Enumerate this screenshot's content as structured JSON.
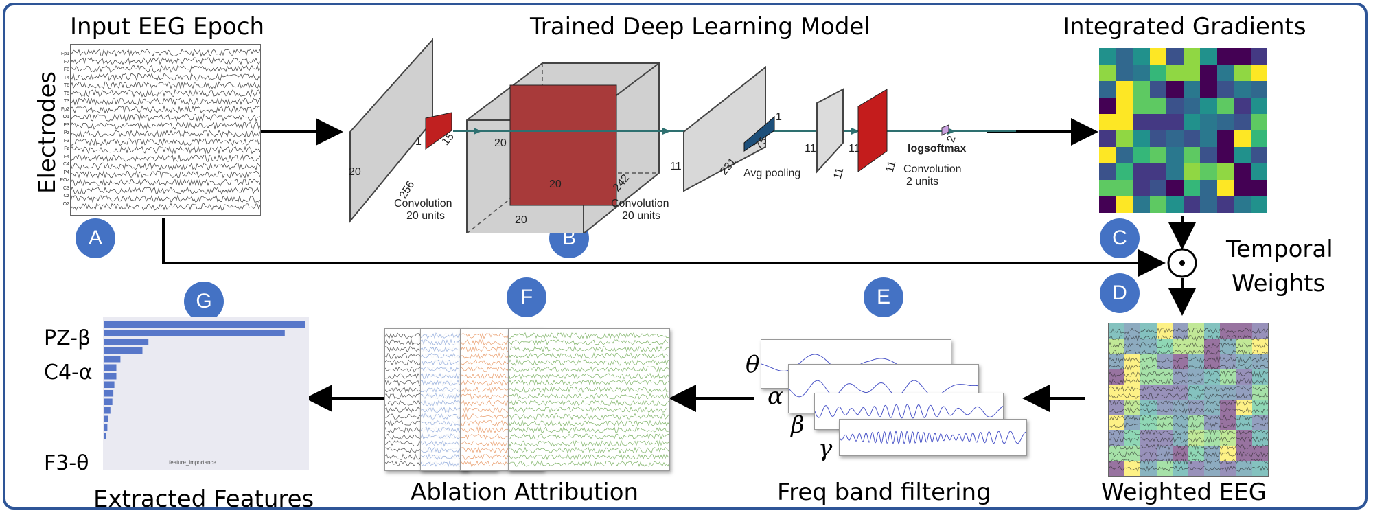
{
  "titles": {
    "input": "Input EEG Epoch",
    "model": "Trained Deep Learning Model",
    "ig": "Integrated Gradients",
    "temporal_line1": "Temporal",
    "temporal_line2": "Weights",
    "weighted": "Weighted EEG",
    "freq": "Freq band filtering",
    "ablation": "Ablation Attribution",
    "extracted": "Extracted Features",
    "electrodes": "Electrodes"
  },
  "badges": {
    "a": "A",
    "b": "B",
    "c": "C",
    "d": "D",
    "e": "E",
    "f": "F",
    "g": "G"
  },
  "electrodes": [
    "Fp1",
    "F7",
    "F8",
    "T4",
    "T6",
    "T5",
    "T3",
    "Fp2",
    "O1",
    "P3",
    "Pz",
    "F3",
    "Fz",
    "F4",
    "C4",
    "P4",
    "POz",
    "C3",
    "Cz",
    "O2"
  ],
  "model": {
    "dim_1": "1",
    "dim_15": "15",
    "dim_20a": "20",
    "dim_256": "256",
    "conv1_line1": "Convolution",
    "conv1_line2": "20 units",
    "dim_20b": "20",
    "dim_20c": "20",
    "dim_20d": "20",
    "dim_242": "242",
    "conv2_line1": "Convolution",
    "conv2_line2": "20 units",
    "dim_11a": "11",
    "dim_231": "231",
    "dim_75": "75",
    "dim_1b": "1",
    "avgpool": "Avg pooling",
    "dim_11b": "11",
    "dim_11c": "11",
    "dim_11d": "11",
    "dim_11e": "11",
    "conv3_line1": "Convolution",
    "conv3_line2": "2 units",
    "dim_2": "2",
    "logsoftmax": "logsoftmax"
  },
  "bands": [
    "θ",
    "α",
    "β",
    "γ"
  ],
  "features": {
    "labels": [
      "PZ-β",
      "C4-α",
      "F3-θ"
    ],
    "xlabel": "feature_importance"
  },
  "colors": {
    "frame": "#2e5597",
    "badge": "#4472c4",
    "viridis": [
      "#440154",
      "#3b528b",
      "#21918c",
      "#5ec962",
      "#fde725",
      "#31688e",
      "#35b779",
      "#90d743",
      "#443983",
      "#2a788e"
    ]
  }
}
